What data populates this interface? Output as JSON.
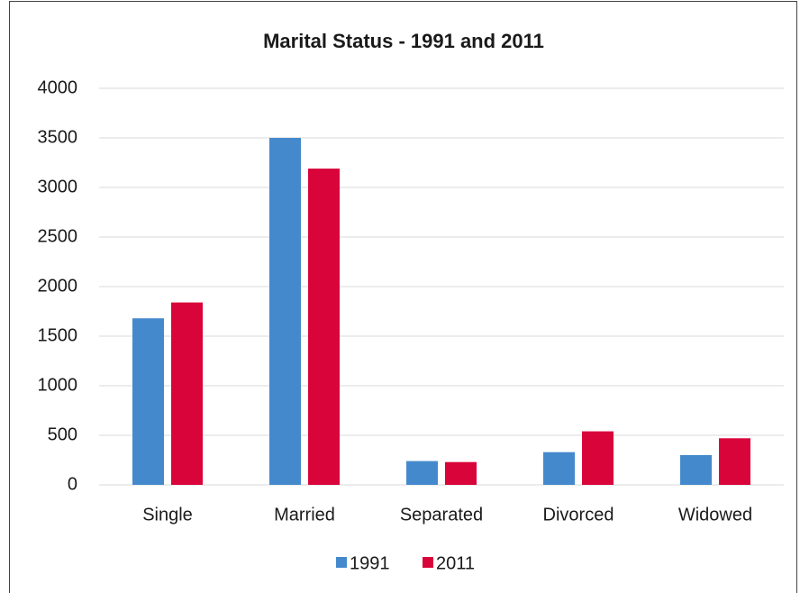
{
  "chart_data": {
    "type": "bar",
    "title": "Marital Status - 1991 and 2011",
    "categories": [
      "Single",
      "Married",
      "Separated",
      "Divorced",
      "Widowed"
    ],
    "series": [
      {
        "name": "1991",
        "color": "#4589cd",
        "values": [
          1680,
          3500,
          240,
          330,
          300
        ]
      },
      {
        "name": "2011",
        "color": "#d9043a",
        "values": [
          1840,
          3190,
          230,
          540,
          470
        ]
      }
    ],
    "ylim": [
      0,
      4000
    ],
    "yticks": [
      0,
      500,
      1000,
      1500,
      2000,
      2500,
      3000,
      3500,
      4000
    ],
    "grid": true,
    "legend": "bottom"
  }
}
